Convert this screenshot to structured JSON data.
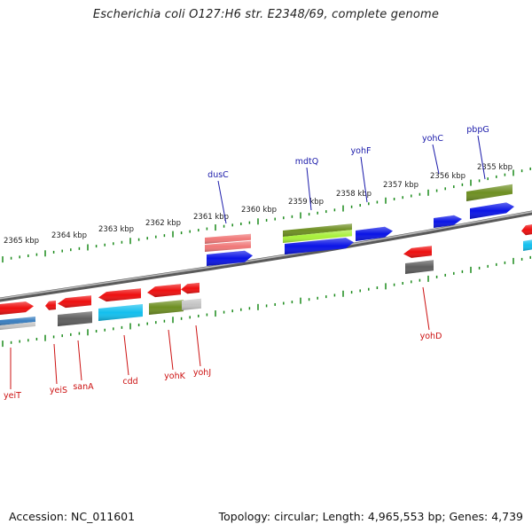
{
  "title": "Escherichia coli O127:H6 str. E2348/69, complete genome",
  "footer": {
    "accession": "Accession: NC_011601",
    "info": "Topology: circular; Length: 4,965,553 bp; Genes: 4,739"
  },
  "colors": {
    "ruler": "#1a8a1a",
    "backbone": "#7a7a7a",
    "label_forward": "#1a1aaa",
    "label_reverse": "#cc1111",
    "red": "#ee0f0f",
    "blue": "#0a14e6",
    "olive": "#6e8f22",
    "lime": "#a8f03a",
    "salmon": "#f07878",
    "gray": "#5e5e5e",
    "lightgray": "#c4c4c4",
    "cyan": "#12bfee",
    "steel": "#3a7fc0"
  },
  "ruler_labels": [
    "2365 kbp",
    "2364 kbp",
    "2363 kbp",
    "2362 kbp",
    "2361 kbp",
    "2360 kbp",
    "2359 kbp",
    "2358 kbp",
    "2357 kbp",
    "2356 kbp",
    "2355 kbp"
  ],
  "gene_labels_forward": [
    "dusC",
    "mdtQ",
    "yohF",
    "yohC",
    "pbpG"
  ],
  "gene_labels_reverse": [
    "yeiT",
    "yeiS",
    "sanA",
    "cdd",
    "yohK",
    "yohJ",
    "yohD"
  ]
}
